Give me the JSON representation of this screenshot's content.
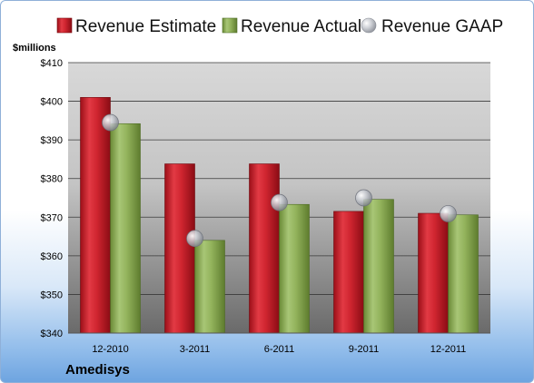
{
  "company": "Amedisys",
  "unit_label": "$millions",
  "colors": {
    "estimate": "#c8202a",
    "actual": "#8aab52",
    "gaap": "#b8bcc4",
    "plot_top": "#d4d4d4",
    "plot_bottom": "#6f6f6f",
    "grid": "#3a3a3a"
  },
  "chart_data": {
    "type": "bar",
    "categories": [
      "12-2010",
      "3-2011",
      "6-2011",
      "9-2011",
      "12-2011"
    ],
    "series": [
      {
        "name": "Revenue Estimate",
        "values": [
          401,
          383.8,
          383.8,
          371.5,
          371
        ]
      },
      {
        "name": "Revenue Actual",
        "values": [
          394.2,
          364,
          373.3,
          374.6,
          370.6
        ]
      },
      {
        "name": "Revenue GAAP",
        "values": [
          394.5,
          364.5,
          373.8,
          375,
          370.9
        ]
      }
    ],
    "ylim": [
      340,
      410
    ],
    "yticks": [
      340,
      350,
      360,
      370,
      380,
      390,
      400,
      410
    ],
    "ytick_labels": [
      "$340",
      "$350",
      "$360",
      "$370",
      "$380",
      "$390",
      "$400",
      "$410"
    ],
    "grid": true,
    "legend": "top"
  }
}
